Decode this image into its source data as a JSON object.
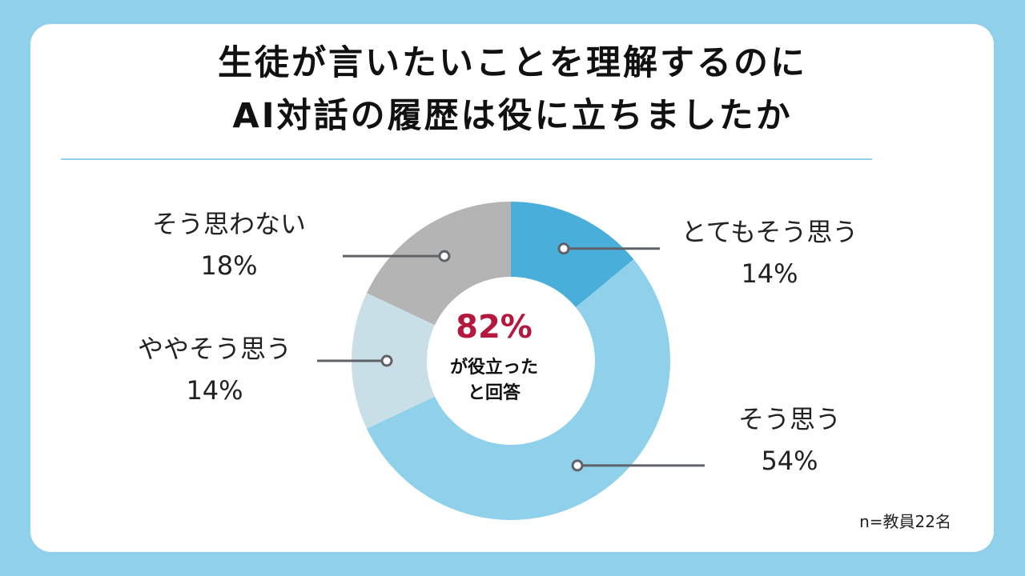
{
  "title": {
    "line1": "生徒が言いたいことを理解するのに",
    "line2": "AI対話の履歴は役に立ちましたか"
  },
  "center": {
    "percent": "82%",
    "line1": "が役立った",
    "line2": "と回答"
  },
  "note": "n=教員22名",
  "colors": {
    "background": "#8fd1ea",
    "card": "#ffffff",
    "accent": "#b5173f",
    "connector": "#5f6368"
  },
  "chart_data": {
    "type": "pie",
    "donut": true,
    "start": "top",
    "direction": "clockwise",
    "slices": [
      {
        "label": "とてもそう思う",
        "value": 14,
        "value_label": "14%",
        "color": "#4aaedb"
      },
      {
        "label": "そう思う",
        "value": 54,
        "value_label": "54%",
        "color": "#8fd1ea"
      },
      {
        "label": "ややそう思う",
        "value": 14,
        "value_label": "14%",
        "color": "#c9dfe8"
      },
      {
        "label": "そう思わない",
        "value": 18,
        "value_label": "18%",
        "color": "#b4b4b4"
      }
    ]
  }
}
